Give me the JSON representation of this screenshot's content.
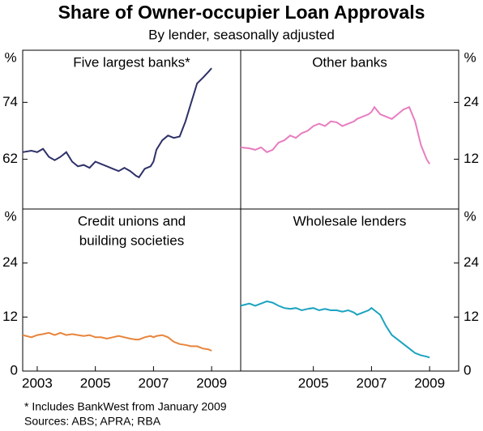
{
  "title": "Share of Owner-occupier Loan Approvals",
  "subtitle": "By lender, seasonally adjusted",
  "notes": [
    "*   Includes BankWest from January 2009",
    "Sources: ABS; APRA; RBA"
  ],
  "chart_data": [
    {
      "type": "line",
      "title": [
        "Five largest banks*"
      ],
      "y_label": "%",
      "x": [
        2002.5,
        2002.8,
        2003.0,
        2003.2,
        2003.4,
        2003.6,
        2003.8,
        2004.0,
        2004.2,
        2004.4,
        2004.6,
        2004.8,
        2005.0,
        2005.2,
        2005.4,
        2005.6,
        2005.8,
        2006.0,
        2006.2,
        2006.4,
        2006.5,
        2006.7,
        2006.9,
        2007.0,
        2007.1,
        2007.3,
        2007.5,
        2007.7,
        2007.9,
        2008.1,
        2008.3,
        2008.5,
        2008.7,
        2008.9,
        2009.0
      ],
      "series": [
        {
          "color": "#2e3068",
          "values": [
            63.5,
            63.8,
            63.5,
            64.2,
            62.5,
            61.8,
            62.5,
            63.5,
            61.5,
            60.5,
            60.8,
            60.2,
            61.5,
            61,
            60.5,
            60,
            59.5,
            60.2,
            59.5,
            58.5,
            58.2,
            60,
            60.5,
            61.5,
            64,
            66,
            67,
            66.5,
            66.8,
            70,
            74,
            78,
            79.2,
            80.5,
            81.2
          ]
        }
      ],
      "xlim": [
        2002.5,
        2010
      ],
      "ylim": [
        51.5,
        85
      ],
      "yticks": [
        62,
        74
      ]
    },
    {
      "type": "line",
      "title": [
        "Other banks"
      ],
      "y_label": "%",
      "x": [
        2002.5,
        2002.8,
        2003.0,
        2003.2,
        2003.4,
        2003.6,
        2003.8,
        2004.0,
        2004.2,
        2004.4,
        2004.6,
        2004.8,
        2005.0,
        2005.2,
        2005.4,
        2005.6,
        2005.8,
        2006.0,
        2006.2,
        2006.4,
        2006.5,
        2006.7,
        2006.9,
        2007.0,
        2007.1,
        2007.3,
        2007.5,
        2007.7,
        2007.9,
        2008.1,
        2008.3,
        2008.5,
        2008.7,
        2008.9,
        2009.0
      ],
      "series": [
        {
          "color": "#e87dc0",
          "values": [
            14.5,
            14.3,
            14,
            14.5,
            13.5,
            14,
            15.5,
            16,
            17,
            16.5,
            17.5,
            18,
            19,
            19.5,
            19,
            20,
            19.8,
            19,
            19.5,
            20,
            20.5,
            21,
            21.5,
            22,
            23,
            21.5,
            21,
            20.5,
            21.5,
            22.5,
            23,
            20,
            15,
            12,
            11
          ]
        }
      ],
      "xlim": [
        2002.5,
        2010
      ],
      "ylim": [
        1.5,
        35
      ],
      "yticks": [
        12,
        24
      ]
    },
    {
      "type": "line",
      "title": [
        "Credit unions and",
        "building societies"
      ],
      "y_label": "%",
      "x": [
        2002.5,
        2002.8,
        2003.0,
        2003.2,
        2003.4,
        2003.6,
        2003.8,
        2004.0,
        2004.2,
        2004.4,
        2004.6,
        2004.8,
        2005.0,
        2005.2,
        2005.4,
        2005.6,
        2005.8,
        2006.0,
        2006.2,
        2006.4,
        2006.5,
        2006.7,
        2006.9,
        2007.0,
        2007.1,
        2007.3,
        2007.5,
        2007.7,
        2007.9,
        2008.1,
        2008.3,
        2008.5,
        2008.7,
        2008.9,
        2009.0
      ],
      "series": [
        {
          "color": "#e8843a",
          "values": [
            8,
            7.5,
            8,
            8.2,
            8.5,
            8,
            8.5,
            8,
            8.2,
            8,
            7.8,
            8,
            7.5,
            7.5,
            7.2,
            7.5,
            7.8,
            7.5,
            7.2,
            7,
            7,
            7.5,
            7.8,
            7.5,
            7.8,
            8,
            7.5,
            6.5,
            6,
            5.8,
            5.5,
            5.5,
            5,
            4.8,
            4.5
          ]
        }
      ],
      "xlim": [
        2002.5,
        2010
      ],
      "xticks": [
        2003,
        2005,
        2007,
        2009
      ],
      "ylim": [
        0,
        36
      ],
      "yticks": [
        0,
        12,
        24
      ]
    },
    {
      "type": "line",
      "title": [
        "Wholesale lenders"
      ],
      "y_label": "%",
      "x": [
        2002.5,
        2002.8,
        2003.0,
        2003.2,
        2003.4,
        2003.6,
        2003.8,
        2004.0,
        2004.2,
        2004.4,
        2004.6,
        2004.8,
        2005.0,
        2005.2,
        2005.4,
        2005.6,
        2005.8,
        2006.0,
        2006.2,
        2006.4,
        2006.5,
        2006.7,
        2006.9,
        2007.0,
        2007.1,
        2007.3,
        2007.5,
        2007.7,
        2007.9,
        2008.1,
        2008.3,
        2008.5,
        2008.7,
        2008.9,
        2009.0
      ],
      "series": [
        {
          "color": "#1ba3c0",
          "values": [
            14.5,
            15,
            14.5,
            15,
            15.5,
            15.2,
            14.5,
            14,
            13.8,
            14,
            13.5,
            13.8,
            14,
            13.5,
            13.8,
            13.5,
            13.5,
            13.2,
            13.5,
            13,
            12.5,
            13,
            13.5,
            14,
            13.5,
            12.5,
            10,
            8,
            7,
            6,
            5,
            4,
            3.5,
            3.2,
            3
          ]
        }
      ],
      "xlim": [
        2002.5,
        2010
      ],
      "xticks": [
        2005,
        2007,
        2009
      ],
      "ylim": [
        0,
        36
      ],
      "yticks": [
        0,
        12,
        24
      ]
    }
  ]
}
